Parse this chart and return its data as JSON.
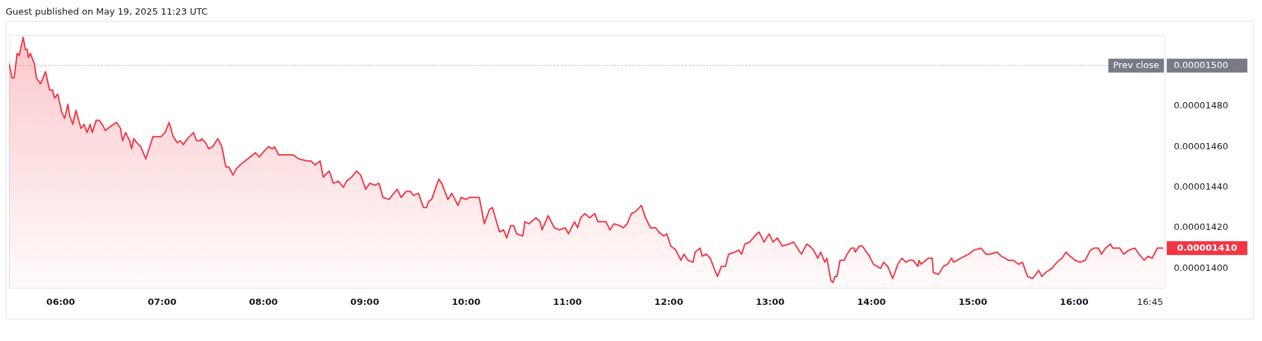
{
  "chart_data": {
    "type": "area",
    "title": "Guest published on May 19, 2025 11:23 UTC",
    "x": [
      5.49,
      5.52,
      5.54,
      5.57,
      5.59,
      5.63,
      5.65,
      5.67,
      5.68,
      5.7,
      5.74,
      5.76,
      5.8,
      5.85,
      5.89,
      5.92,
      5.94,
      5.97,
      6.01,
      6.04,
      6.07,
      6.09,
      6.12,
      6.15,
      6.2,
      6.23,
      6.26,
      6.29,
      6.31,
      6.35,
      6.38,
      6.41,
      6.44,
      6.49,
      6.55,
      6.59,
      6.61,
      6.64,
      6.68,
      6.7,
      6.72,
      6.75,
      6.79,
      6.84,
      6.91,
      6.95,
      6.99,
      7.03,
      7.07,
      7.11,
      7.15,
      7.18,
      7.21,
      7.25,
      7.31,
      7.34,
      7.38,
      7.39,
      7.43,
      7.46,
      7.5,
      7.55,
      7.59,
      7.63,
      7.66,
      7.7,
      7.73,
      7.77,
      7.82,
      7.87,
      7.92,
      7.96,
      8.01,
      8.05,
      8.09,
      8.11,
      8.15,
      8.2,
      8.24,
      8.29,
      8.35,
      8.43,
      8.47,
      8.51,
      8.56,
      8.59,
      8.65,
      8.69,
      8.74,
      8.79,
      8.82,
      8.87,
      8.92,
      8.96,
      9.01,
      9.05,
      9.1,
      9.14,
      9.18,
      9.24,
      9.27,
      9.32,
      9.36,
      9.41,
      9.45,
      9.48,
      9.53,
      9.58,
      9.61,
      9.63,
      9.66,
      9.73,
      9.76,
      9.82,
      9.86,
      9.92,
      9.95,
      10.0,
      10.03,
      10.08,
      10.13,
      10.18,
      10.23,
      10.26,
      10.3,
      10.33,
      10.37,
      10.4,
      10.44,
      10.47,
      10.5,
      10.56,
      10.58,
      10.62,
      10.69,
      10.73,
      10.75,
      10.81,
      10.87,
      10.92,
      10.98,
      11.01,
      11.07,
      11.1,
      11.13,
      11.17,
      11.22,
      11.27,
      11.3,
      11.38,
      11.42,
      11.46,
      11.52,
      11.55,
      11.59,
      11.63,
      11.67,
      11.73,
      11.77,
      11.82,
      11.87,
      11.9,
      11.95,
      11.98,
      12.02,
      12.07,
      12.12,
      12.15,
      12.19,
      12.24,
      12.26,
      12.31,
      12.33,
      12.37,
      12.41,
      12.44,
      12.48,
      12.52,
      12.56,
      12.59,
      12.65,
      12.69,
      12.72,
      12.75,
      12.8,
      12.85,
      12.89,
      12.94,
      12.99,
      13.03,
      13.07,
      13.12,
      13.19,
      13.23,
      13.31,
      13.36,
      13.39,
      13.43,
      13.47,
      13.5,
      13.54,
      13.56,
      13.6,
      13.62,
      13.64,
      13.66,
      13.69,
      13.73,
      13.76,
      13.8,
      13.83,
      13.84,
      13.88,
      13.91,
      13.98,
      14.02,
      14.09,
      14.12,
      14.16,
      14.21,
      14.26,
      14.3,
      14.34,
      14.37,
      14.41,
      14.46,
      14.47,
      14.49,
      14.56,
      14.6,
      14.61,
      14.66,
      14.71,
      14.75,
      14.79,
      14.81,
      14.88,
      14.96,
      15.01,
      15.08,
      15.13,
      15.17,
      15.24,
      15.28,
      15.32,
      15.35,
      15.4,
      15.45,
      15.49,
      15.54,
      15.59,
      15.65,
      15.68,
      15.72,
      15.78,
      15.83,
      15.88,
      15.92,
      15.96,
      16.01,
      16.06,
      16.11,
      16.16,
      16.2,
      16.24,
      16.27,
      16.31,
      16.36,
      16.38,
      16.45,
      16.49,
      16.54,
      16.6,
      16.64,
      16.69,
      16.73,
      16.77,
      16.82,
      16.85,
      16.88
    ],
    "series": [
      {
        "color": "#f23645",
        "values": [
          1.501e-05,
          1.494e-05,
          1.494e-05,
          1.506e-05,
          1.505e-05,
          1.514e-05,
          1.508e-05,
          1.508e-05,
          1.504e-05,
          1.506e-05,
          1.501e-05,
          1.494e-05,
          1.491e-05,
          1.497e-05,
          1.488e-05,
          1.488e-05,
          1.484e-05,
          1.486e-05,
          1.477e-05,
          1.474e-05,
          1.481e-05,
          1.475e-05,
          1.471e-05,
          1.478e-05,
          1.469e-05,
          1.471e-05,
          1.467e-05,
          1.471e-05,
          1.467e-05,
          1.473e-05,
          1.473e-05,
          1.471e-05,
          1.468e-05,
          1.47e-05,
          1.472e-05,
          1.469e-05,
          1.463e-05,
          1.467e-05,
          1.463e-05,
          1.459e-05,
          1.464e-05,
          1.462e-05,
          1.46e-05,
          1.454e-05,
          1.465e-05,
          1.465e-05,
          1.465e-05,
          1.467e-05,
          1.472e-05,
          1.465e-05,
          1.462e-05,
          1.463e-05,
          1.461e-05,
          1.464e-05,
          1.467e-05,
          1.463e-05,
          1.463e-05,
          1.464e-05,
          1.462e-05,
          1.459e-05,
          1.46e-05,
          1.464e-05,
          1.46e-05,
          1.45e-05,
          1.45e-05,
          1.446e-05,
          1.449e-05,
          1.451e-05,
          1.453e-05,
          1.455e-05,
          1.457e-05,
          1.455e-05,
          1.458e-05,
          1.46e-05,
          1.459e-05,
          1.46e-05,
          1.456e-05,
          1.456e-05,
          1.456e-05,
          1.456e-05,
          1.454e-05,
          1.453e-05,
          1.453e-05,
          1.451e-05,
          1.453e-05,
          1.445e-05,
          1.448e-05,
          1.442e-05,
          1.443e-05,
          1.44e-05,
          1.443e-05,
          1.445e-05,
          1.448e-05,
          1.446e-05,
          1.439e-05,
          1.442e-05,
          1.441e-05,
          1.442e-05,
          1.435e-05,
          1.434e-05,
          1.436e-05,
          1.439e-05,
          1.435e-05,
          1.438e-05,
          1.438e-05,
          1.436e-05,
          1.437e-05,
          1.43e-05,
          1.43e-05,
          1.433e-05,
          1.434e-05,
          1.444e-05,
          1.442e-05,
          1.434e-05,
          1.437e-05,
          1.431e-05,
          1.435e-05,
          1.434e-05,
          1.435e-05,
          1.435e-05,
          1.435e-05,
          1.422e-05,
          1.429e-05,
          1.43e-05,
          1.423e-05,
          1.418e-05,
          1.419e-05,
          1.415e-05,
          1.421e-05,
          1.421e-05,
          1.417e-05,
          1.416e-05,
          1.423e-05,
          1.422e-05,
          1.425e-05,
          1.423e-05,
          1.419e-05,
          1.426e-05,
          1.42e-05,
          1.419e-05,
          1.42e-05,
          1.417e-05,
          1.423e-05,
          1.42e-05,
          1.425e-05,
          1.427e-05,
          1.425e-05,
          1.427e-05,
          1.423e-05,
          1.423e-05,
          1.419e-05,
          1.422e-05,
          1.421e-05,
          1.42e-05,
          1.422e-05,
          1.427e-05,
          1.428e-05,
          1.431e-05,
          1.425e-05,
          1.42e-05,
          1.42e-05,
          1.418e-05,
          1.416e-05,
          1.417e-05,
          1.411e-05,
          1.409e-05,
          1.404e-05,
          1.407e-05,
          1.404e-05,
          1.403e-05,
          1.408e-05,
          1.41e-05,
          1.406e-05,
          1.407e-05,
          1.405e-05,
          1.401e-05,
          1.396e-05,
          1.401e-05,
          1.401e-05,
          1.407e-05,
          1.408e-05,
          1.409e-05,
          1.407e-05,
          1.412e-05,
          1.413e-05,
          1.416e-05,
          1.418e-05,
          1.413e-05,
          1.417e-05,
          1.413e-05,
          1.415e-05,
          1.411e-05,
          1.412e-05,
          1.413e-05,
          1.407e-05,
          1.412e-05,
          1.411e-05,
          1.409e-05,
          1.405e-05,
          1.408e-05,
          1.403e-05,
          1.405e-05,
          1.394e-05,
          1.393e-05,
          1.396e-05,
          1.396e-05,
          1.404e-05,
          1.404e-05,
          1.407e-05,
          1.41e-05,
          1.41e-05,
          1.408e-05,
          1.411e-05,
          1.411e-05,
          1.406e-05,
          1.402e-05,
          1.4e-05,
          1.403e-05,
          1.401e-05,
          1.395e-05,
          1.402e-05,
          1.405e-05,
          1.403e-05,
          1.404e-05,
          1.404e-05,
          1.401e-05,
          1.404e-05,
          1.402e-05,
          1.405e-05,
          1.405e-05,
          1.398e-05,
          1.397e-05,
          1.401e-05,
          1.402e-05,
          1.405e-05,
          1.403e-05,
          1.405e-05,
          1.407e-05,
          1.409e-05,
          1.41e-05,
          1.407e-05,
          1.407e-05,
          1.408e-05,
          1.406e-05,
          1.405e-05,
          1.404e-05,
          1.404e-05,
          1.402e-05,
          1.403e-05,
          1.396e-05,
          1.395e-05,
          1.399e-05,
          1.396e-05,
          1.398e-05,
          1.4e-05,
          1.403e-05,
          1.405e-05,
          1.408e-05,
          1.406e-05,
          1.404e-05,
          1.403e-05,
          1.404e-05,
          1.409e-05,
          1.41e-05,
          1.41e-05,
          1.407e-05,
          1.41e-05,
          1.412e-05,
          1.41e-05,
          1.41e-05,
          1.407e-05,
          1.409e-05,
          1.41e-05,
          1.407e-05,
          1.404e-05,
          1.406e-05,
          1.405e-05,
          1.41e-05,
          1.41e-05,
          1.41e-05
        ]
      }
    ],
    "xlim": [
      5.49,
      16.9
    ],
    "xticks": [
      {
        "value": 6,
        "label": "06:00"
      },
      {
        "value": 7,
        "label": "07:00"
      },
      {
        "value": 8,
        "label": "08:00"
      },
      {
        "value": 9,
        "label": "09:00"
      },
      {
        "value": 10,
        "label": "10:00"
      },
      {
        "value": 11,
        "label": "11:00"
      },
      {
        "value": 12,
        "label": "12:00"
      },
      {
        "value": 13,
        "label": "13:00"
      },
      {
        "value": 14,
        "label": "14:00"
      },
      {
        "value": 15,
        "label": "15:00"
      },
      {
        "value": 16,
        "label": "16:00"
      },
      {
        "value": 16.75,
        "label": "16:45"
      }
    ],
    "ylim": [
      1.39e-05,
      1.515e-05
    ],
    "yticks": [
      {
        "value": 1.4e-05,
        "label": "0.00001400"
      },
      {
        "value": 1.42e-05,
        "label": "0.00001420"
      },
      {
        "value": 1.44e-05,
        "label": "0.00001440"
      },
      {
        "value": 1.46e-05,
        "label": "0.00001460"
      },
      {
        "value": 1.48e-05,
        "label": "0.00001480"
      },
      {
        "value": 1.5e-05,
        "label": "0.00001500"
      }
    ],
    "ref_lines": [
      {
        "axis": "y",
        "value": 1.5e-05,
        "label": "Prev close",
        "color": "#787b86",
        "line_style": "dotted"
      }
    ],
    "annotations": [
      "0.00001410"
    ],
    "grid": false,
    "legend": false
  }
}
